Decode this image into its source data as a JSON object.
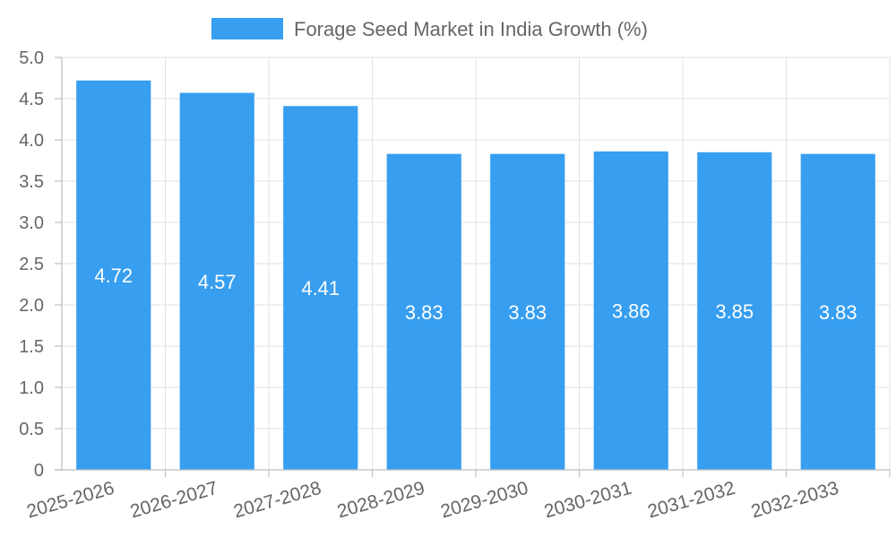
{
  "chart_data": {
    "type": "bar",
    "title": "",
    "xlabel": "",
    "ylabel": "",
    "categories": [
      "2025-2026",
      "2026-2027",
      "2027-2028",
      "2028-2029",
      "2029-2030",
      "2030-2031",
      "2031-2032",
      "2032-2033"
    ],
    "series": [
      {
        "name": "Forage Seed Market in India Growth (%)",
        "values": [
          4.72,
          4.57,
          4.41,
          3.83,
          3.83,
          3.86,
          3.85,
          3.83
        ],
        "color": "#379ef0"
      }
    ],
    "value_labels": [
      "4.72",
      "4.57",
      "4.41",
      "3.83",
      "3.83",
      "3.86",
      "3.85",
      "3.83"
    ],
    "ylim": [
      0,
      5
    ],
    "yticks": [
      0,
      0.5,
      1,
      1.5,
      2,
      2.5,
      3,
      3.5,
      4,
      4.5,
      5
    ],
    "ytick_labels": [
      "0",
      "0.5",
      "1.0",
      "1.5",
      "2.0",
      "2.5",
      "3.0",
      "3.5",
      "4.0",
      "4.5",
      "5.0"
    ],
    "grid": true,
    "legend_position": "top-center"
  }
}
